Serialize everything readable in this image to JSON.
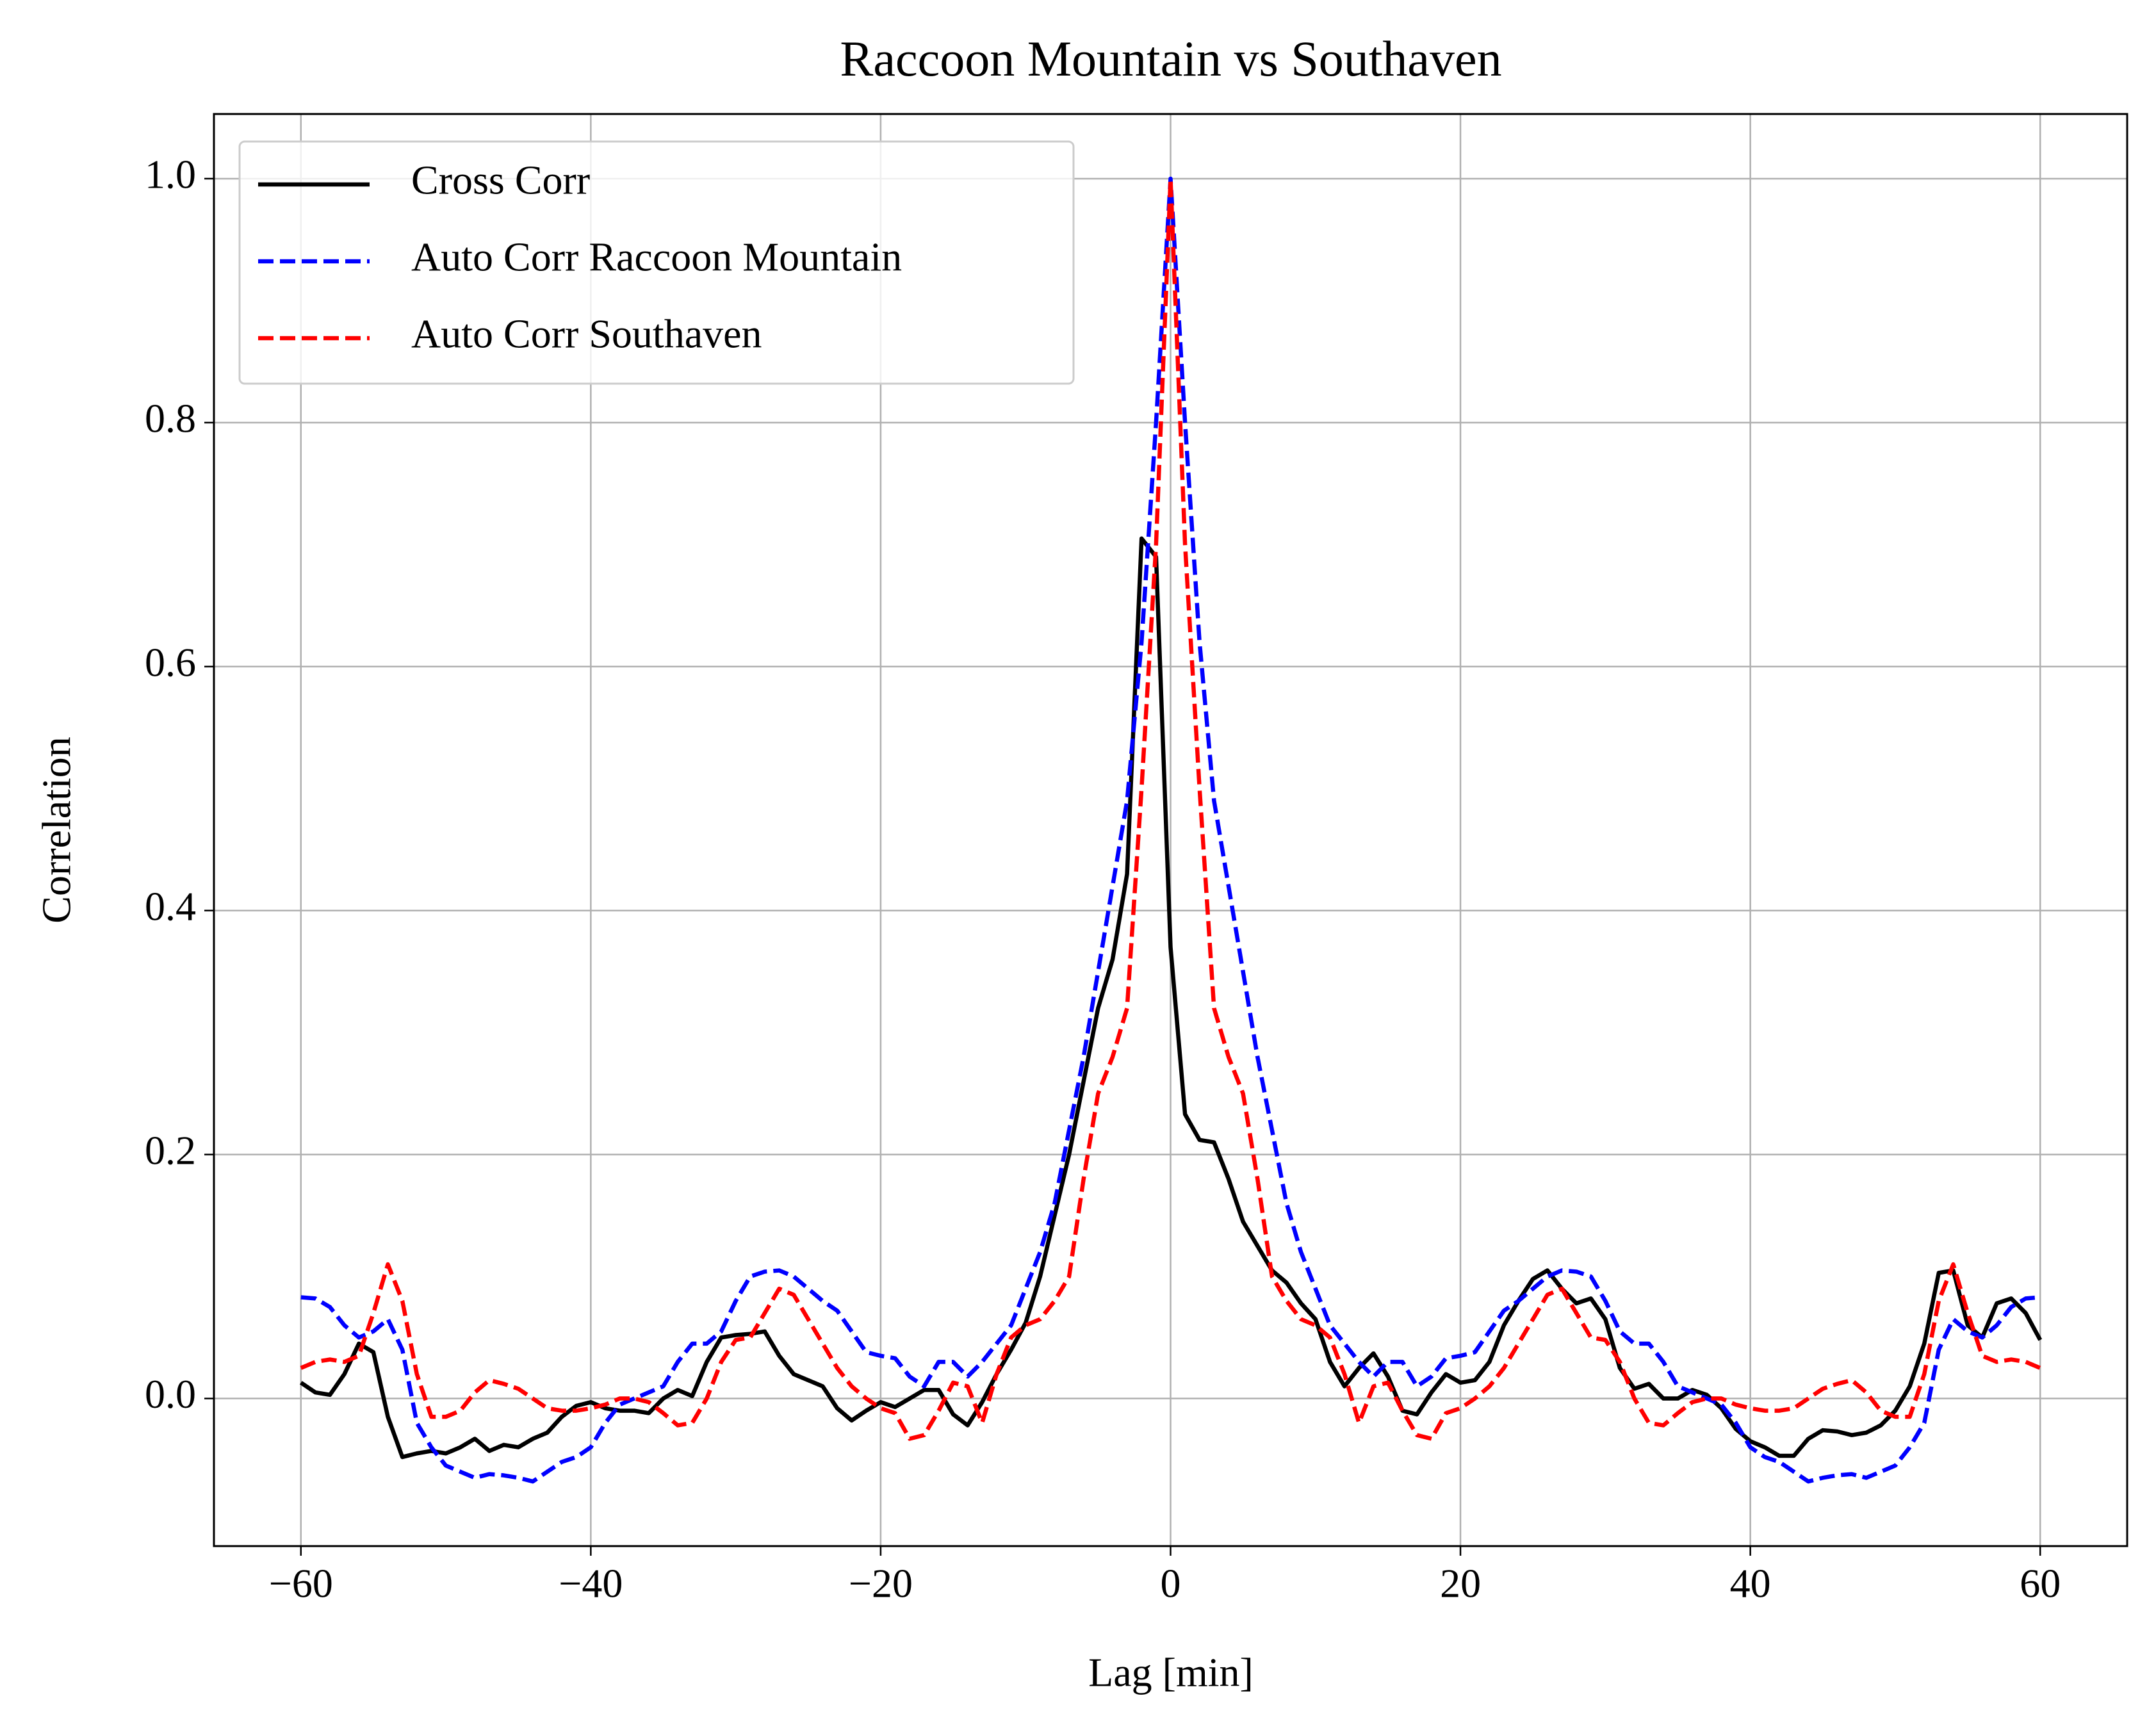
{
  "chart_data": {
    "type": "line",
    "title": "Raccoon Mountain vs Southaven",
    "x_label": "Lag [min]",
    "y_label": "Correlation",
    "x": [
      -60,
      -59,
      -58,
      -57,
      -56,
      -55,
      -54,
      -53,
      -52,
      -51,
      -50,
      -49,
      -48,
      -47,
      -46,
      -45,
      -44,
      -43,
      -42,
      -41,
      -40,
      -39,
      -38,
      -37,
      -36,
      -35,
      -34,
      -33,
      -32,
      -31,
      -30,
      -29,
      -28,
      -27,
      -26,
      -25,
      -24,
      -23,
      -22,
      -21,
      -20,
      -19,
      -18,
      -17,
      -16,
      -15,
      -14,
      -13,
      -12,
      -11,
      -10,
      -9,
      -8,
      -7,
      -6,
      -5,
      -4,
      -3,
      -2,
      -1,
      0,
      1,
      2,
      3,
      4,
      5,
      6,
      7,
      8,
      9,
      10,
      11,
      12,
      13,
      14,
      15,
      16,
      17,
      18,
      19,
      20,
      21,
      22,
      23,
      24,
      25,
      26,
      27,
      28,
      29,
      30,
      31,
      32,
      33,
      34,
      35,
      36,
      37,
      38,
      39,
      40,
      41,
      42,
      43,
      44,
      45,
      46,
      47,
      48,
      49,
      50,
      51,
      52,
      53,
      54,
      55,
      56,
      57,
      58,
      59,
      60
    ],
    "series": [
      {
        "name": "Cross Corr",
        "color": "#000000",
        "dashed": false,
        "values": [
          0.013,
          0.005,
          0.003,
          0.02,
          0.045,
          0.038,
          -0.015,
          -0.048,
          -0.045,
          -0.043,
          -0.045,
          -0.04,
          -0.033,
          -0.043,
          -0.038,
          -0.04,
          -0.033,
          -0.028,
          -0.015,
          -0.006,
          -0.003,
          -0.008,
          -0.01,
          -0.01,
          -0.012,
          0.0,
          0.007,
          0.002,
          0.03,
          0.05,
          0.052,
          0.053,
          0.055,
          0.035,
          0.02,
          0.015,
          0.01,
          -0.008,
          -0.018,
          -0.01,
          -0.003,
          -0.007,
          0.0,
          0.007,
          0.007,
          -0.013,
          -0.022,
          -0.003,
          0.02,
          0.04,
          0.062,
          0.1,
          0.15,
          0.2,
          0.26,
          0.32,
          0.36,
          0.43,
          0.705,
          0.69,
          0.37,
          0.233,
          0.212,
          0.21,
          0.18,
          0.145,
          0.125,
          0.105,
          0.095,
          0.078,
          0.065,
          0.03,
          0.01,
          0.025,
          0.037,
          0.018,
          -0.01,
          -0.013,
          0.005,
          0.02,
          0.013,
          0.015,
          0.03,
          0.06,
          0.08,
          0.098,
          0.105,
          0.09,
          0.078,
          0.082,
          0.065,
          0.025,
          0.008,
          0.012,
          0.0,
          0.0,
          0.007,
          0.003,
          -0.008,
          -0.025,
          -0.035,
          -0.04,
          -0.047,
          -0.047,
          -0.033,
          -0.026,
          -0.027,
          -0.03,
          -0.028,
          -0.022,
          -0.01,
          0.01,
          0.045,
          0.103,
          0.105,
          0.06,
          0.05,
          0.078,
          0.082,
          0.07,
          0.048
        ]
      },
      {
        "name": "Auto Corr Raccoon Mountain",
        "color": "#0000ff",
        "dashed": true,
        "values": [
          0.083,
          0.082,
          0.075,
          0.06,
          0.05,
          0.055,
          0.065,
          0.04,
          -0.02,
          -0.04,
          -0.055,
          -0.06,
          -0.065,
          -0.062,
          -0.063,
          -0.065,
          -0.068,
          -0.06,
          -0.052,
          -0.048,
          -0.04,
          -0.02,
          -0.005,
          0.0,
          0.005,
          0.01,
          0.03,
          0.045,
          0.045,
          0.055,
          0.08,
          0.1,
          0.104,
          0.105,
          0.1,
          0.09,
          0.08,
          0.072,
          0.055,
          0.038,
          0.035,
          0.033,
          0.018,
          0.01,
          0.03,
          0.03,
          0.018,
          0.03,
          0.045,
          0.06,
          0.09,
          0.12,
          0.16,
          0.22,
          0.28,
          0.35,
          0.42,
          0.49,
          0.62,
          0.8,
          1.0,
          0.8,
          0.62,
          0.49,
          0.42,
          0.35,
          0.28,
          0.22,
          0.16,
          0.12,
          0.09,
          0.06,
          0.045,
          0.03,
          0.018,
          0.03,
          0.03,
          0.01,
          0.018,
          0.033,
          0.035,
          0.038,
          0.055,
          0.072,
          0.08,
          0.09,
          0.1,
          0.105,
          0.104,
          0.1,
          0.08,
          0.055,
          0.045,
          0.045,
          0.03,
          0.01,
          0.005,
          0.0,
          -0.005,
          -0.02,
          -0.04,
          -0.048,
          -0.052,
          -0.06,
          -0.068,
          -0.065,
          -0.063,
          -0.062,
          -0.065,
          -0.06,
          -0.055,
          -0.04,
          -0.02,
          0.04,
          0.065,
          0.055,
          0.05,
          0.06,
          0.075,
          0.082,
          0.083
        ]
      },
      {
        "name": "Auto Corr Southaven",
        "color": "#ff0000",
        "dashed": true,
        "values": [
          0.025,
          0.03,
          0.032,
          0.03,
          0.035,
          0.07,
          0.11,
          0.08,
          0.02,
          -0.015,
          -0.015,
          -0.01,
          0.005,
          0.015,
          0.012,
          0.008,
          0.0,
          -0.008,
          -0.01,
          -0.01,
          -0.008,
          -0.005,
          0.0,
          0.0,
          -0.003,
          -0.012,
          -0.022,
          -0.02,
          0.0,
          0.03,
          0.048,
          0.05,
          0.07,
          0.09,
          0.085,
          0.065,
          0.045,
          0.025,
          0.01,
          0.0,
          -0.008,
          -0.012,
          -0.033,
          -0.03,
          -0.01,
          0.013,
          0.01,
          -0.02,
          0.02,
          0.05,
          0.06,
          0.065,
          0.08,
          0.1,
          0.18,
          0.25,
          0.28,
          0.32,
          0.5,
          0.7,
          1.0,
          0.7,
          0.5,
          0.32,
          0.28,
          0.25,
          0.18,
          0.1,
          0.08,
          0.065,
          0.06,
          0.05,
          0.02,
          -0.02,
          0.01,
          0.013,
          -0.01,
          -0.03,
          -0.033,
          -0.012,
          -0.008,
          0.0,
          0.01,
          0.025,
          0.045,
          0.065,
          0.085,
          0.09,
          0.07,
          0.05,
          0.048,
          0.03,
          0.0,
          -0.02,
          -0.022,
          -0.012,
          -0.003,
          0.0,
          0.0,
          -0.005,
          -0.008,
          -0.01,
          -0.01,
          -0.008,
          0.0,
          0.008,
          0.012,
          0.015,
          0.005,
          -0.01,
          -0.015,
          -0.015,
          0.02,
          0.08,
          0.11,
          0.07,
          0.035,
          0.03,
          0.032,
          0.03,
          0.025
        ]
      }
    ],
    "xlim": [
      -66,
      66
    ],
    "ylim": [
      -0.121,
      1.053
    ],
    "xticks": [
      {
        "value": -60,
        "label": "−60"
      },
      {
        "value": -40,
        "label": "−40"
      },
      {
        "value": -20,
        "label": "−20"
      },
      0,
      20,
      40,
      60
    ],
    "yticks": [
      {
        "value": 0,
        "label": "0.0"
      },
      0.2,
      0.4,
      0.6,
      0.8,
      {
        "value": 1,
        "label": "1.0"
      }
    ],
    "grid": true,
    "legend": "upper-left"
  }
}
